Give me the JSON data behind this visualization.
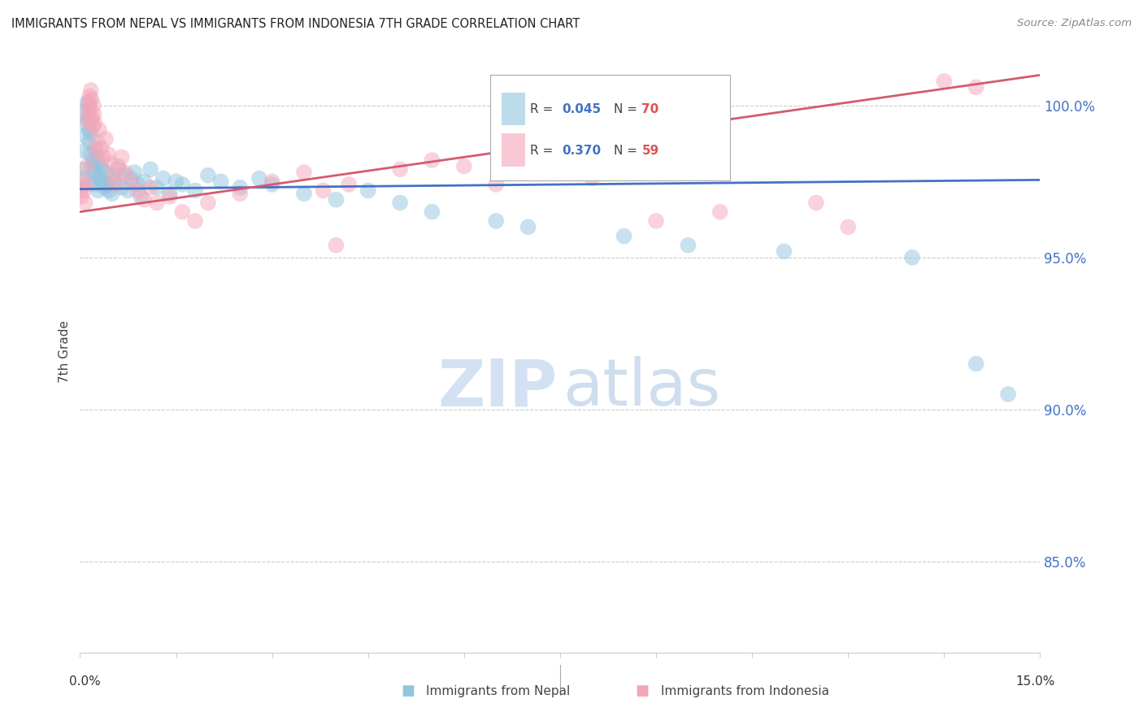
{
  "title": "IMMIGRANTS FROM NEPAL VS IMMIGRANTS FROM INDONESIA 7TH GRADE CORRELATION CHART",
  "source": "Source: ZipAtlas.com",
  "ylabel": "7th Grade",
  "xlim": [
    0.0,
    15.0
  ],
  "ylim": [
    82.0,
    101.8
  ],
  "yticks": [
    85.0,
    90.0,
    95.0,
    100.0
  ],
  "ytick_labels": [
    "85.0%",
    "90.0%",
    "95.0%",
    "100.0%"
  ],
  "nepal_R": "0.045",
  "nepal_N": "70",
  "indonesia_R": "0.370",
  "indonesia_N": "59",
  "nepal_color": "#92c5de",
  "indonesia_color": "#f4a6b8",
  "nepal_line_color": "#4472c4",
  "indonesia_line_color": "#d45a72",
  "legend_R_color": "#4472c4",
  "legend_N_color": "#e05050",
  "bottom_legend_nepal": "Immigrants from Nepal",
  "bottom_legend_indonesia": "Immigrants from Indonesia",
  "nepal_x": [
    0.02,
    0.04,
    0.06,
    0.07,
    0.08,
    0.09,
    0.1,
    0.11,
    0.12,
    0.13,
    0.14,
    0.15,
    0.16,
    0.17,
    0.18,
    0.19,
    0.2,
    0.21,
    0.22,
    0.23,
    0.24,
    0.25,
    0.26,
    0.27,
    0.28,
    0.3,
    0.32,
    0.34,
    0.36,
    0.38,
    0.4,
    0.42,
    0.45,
    0.48,
    0.5,
    0.55,
    0.6,
    0.65,
    0.7,
    0.75,
    0.8,
    0.85,
    0.9,
    0.95,
    1.0,
    1.1,
    1.2,
    1.3,
    1.4,
    1.5,
    1.6,
    1.8,
    2.0,
    2.2,
    2.5,
    2.8,
    3.0,
    3.5,
    4.0,
    4.5,
    5.0,
    5.5,
    6.5,
    7.0,
    8.5,
    9.5,
    11.0,
    13.0,
    14.0,
    14.5
  ],
  "nepal_y": [
    97.3,
    97.6,
    97.9,
    98.5,
    99.0,
    99.4,
    99.8,
    100.1,
    99.6,
    100.0,
    99.2,
    98.8,
    98.4,
    99.1,
    99.5,
    98.0,
    97.5,
    98.2,
    97.8,
    98.6,
    97.4,
    98.1,
    97.7,
    98.3,
    97.2,
    97.6,
    98.0,
    97.9,
    97.5,
    97.3,
    97.8,
    97.4,
    97.2,
    97.6,
    97.1,
    97.5,
    97.9,
    97.3,
    97.7,
    97.2,
    97.6,
    97.8,
    97.4,
    97.0,
    97.5,
    97.9,
    97.3,
    97.6,
    97.1,
    97.5,
    97.4,
    97.2,
    97.7,
    97.5,
    97.3,
    97.6,
    97.4,
    97.1,
    96.9,
    97.2,
    96.8,
    96.5,
    96.2,
    96.0,
    95.7,
    95.4,
    95.2,
    95.0,
    91.5,
    90.5
  ],
  "indonesia_x": [
    0.02,
    0.04,
    0.06,
    0.08,
    0.1,
    0.11,
    0.12,
    0.13,
    0.14,
    0.15,
    0.16,
    0.17,
    0.18,
    0.19,
    0.2,
    0.21,
    0.22,
    0.23,
    0.25,
    0.27,
    0.3,
    0.33,
    0.36,
    0.4,
    0.44,
    0.48,
    0.52,
    0.56,
    0.6,
    0.65,
    0.7,
    0.8,
    0.9,
    1.0,
    1.1,
    1.2,
    1.4,
    1.6,
    1.8,
    2.0,
    2.5,
    3.0,
    3.5,
    4.2,
    5.0,
    5.5,
    6.0,
    7.5,
    8.0,
    9.0,
    10.0,
    11.5,
    13.5,
    14.0,
    6.5,
    4.0,
    3.8,
    9.5,
    12.0
  ],
  "indonesia_y": [
    97.0,
    97.5,
    97.2,
    96.8,
    97.4,
    98.0,
    99.5,
    99.8,
    100.1,
    100.3,
    99.9,
    100.5,
    100.2,
    99.6,
    99.3,
    100.0,
    99.7,
    99.4,
    98.5,
    98.8,
    99.2,
    98.6,
    98.3,
    98.9,
    98.4,
    98.1,
    97.7,
    97.4,
    98.0,
    98.3,
    97.8,
    97.5,
    97.2,
    96.9,
    97.3,
    96.8,
    97.0,
    96.5,
    96.2,
    96.8,
    97.1,
    97.5,
    97.8,
    97.4,
    97.9,
    98.2,
    98.0,
    98.5,
    97.6,
    96.2,
    96.5,
    96.8,
    100.8,
    100.6,
    97.4,
    95.4,
    97.2,
    97.8,
    96.0
  ],
  "nepal_line_x0": 0.0,
  "nepal_line_y0": 97.25,
  "nepal_line_x1": 15.0,
  "nepal_line_y1": 97.55,
  "indonesia_line_x0": 0.0,
  "indonesia_line_y0": 96.5,
  "indonesia_line_x1": 15.0,
  "indonesia_line_y1": 101.0
}
